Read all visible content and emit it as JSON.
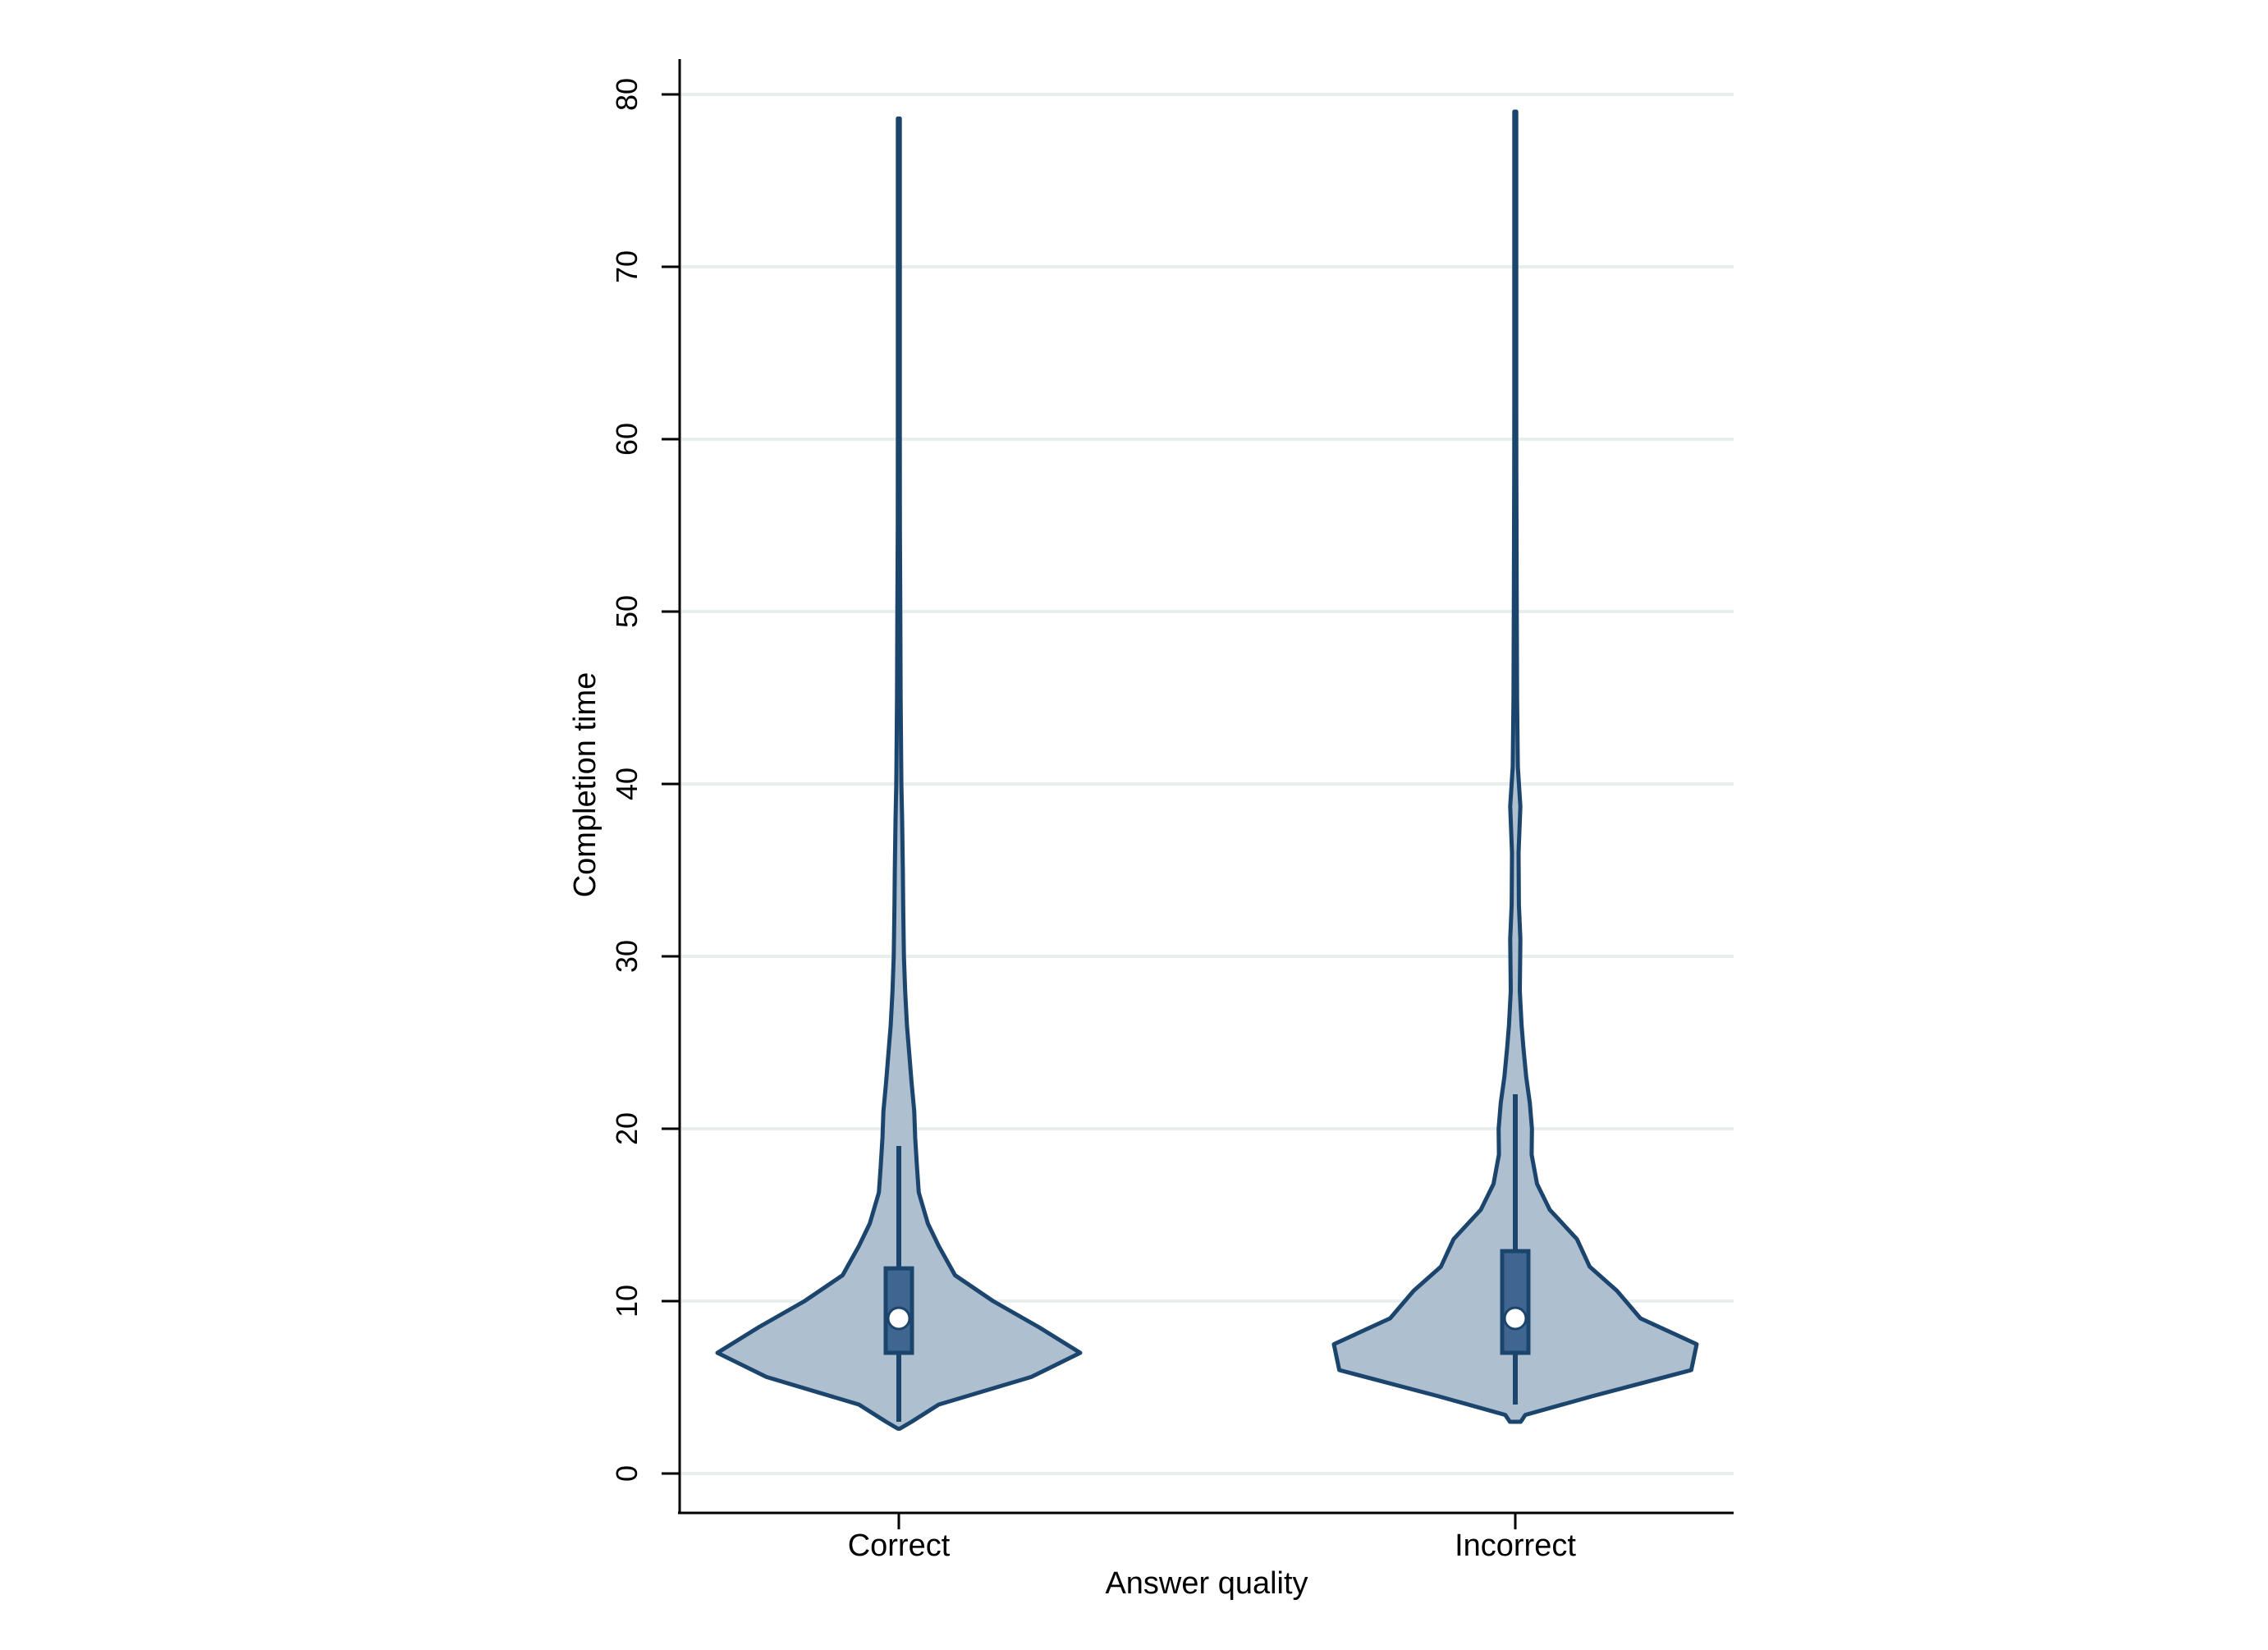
{
  "chart_data": {
    "type": "violin",
    "title": "",
    "xlabel": "Answer quality",
    "ylabel": "Completion time",
    "ylim": [
      0,
      80
    ],
    "yticks": [
      0,
      10,
      20,
      30,
      40,
      50,
      60,
      70,
      80
    ],
    "grid": "horizontal",
    "legend": "none",
    "categories": [
      "Correct",
      "Incorrect"
    ],
    "series": [
      {
        "category": "Correct",
        "min": 2.6,
        "max": 78.6,
        "box": {
          "whisker_low": 3.0,
          "q1": 7.0,
          "median": 9.0,
          "q3": 11.9,
          "whisker_high": 19.0
        },
        "density": [
          [
            2.6,
            0.0
          ],
          [
            3.0,
            0.07
          ],
          [
            4.0,
            0.22
          ],
          [
            5.6,
            0.73
          ],
          [
            7.0,
            1.0
          ],
          [
            8.5,
            0.77
          ],
          [
            10.0,
            0.52
          ],
          [
            11.5,
            0.31
          ],
          [
            13.2,
            0.22
          ],
          [
            14.5,
            0.16
          ],
          [
            16.3,
            0.11
          ],
          [
            17.8,
            0.1
          ],
          [
            19.5,
            0.09
          ],
          [
            21.0,
            0.085
          ],
          [
            22.7,
            0.07
          ],
          [
            24.0,
            0.06
          ],
          [
            26.0,
            0.045
          ],
          [
            28.0,
            0.035
          ],
          [
            30.0,
            0.028
          ],
          [
            33.0,
            0.024
          ],
          [
            35.0,
            0.022
          ],
          [
            38.0,
            0.018
          ],
          [
            40.0,
            0.014
          ],
          [
            45.0,
            0.01
          ],
          [
            50.0,
            0.008
          ],
          [
            55.0,
            0.006
          ],
          [
            60.0,
            0.004
          ],
          [
            65.0,
            0.003
          ],
          [
            70.0,
            0.003
          ],
          [
            75.0,
            0.002
          ],
          [
            78.6,
            0.0
          ]
        ]
      },
      {
        "category": "Incorrect",
        "min": 3.0,
        "max": 79.0,
        "box": {
          "whisker_low": 4.0,
          "q1": 7.0,
          "median": 9.0,
          "q3": 12.9,
          "whisker_high": 22.0
        },
        "density": [
          [
            3.0,
            0.03
          ],
          [
            3.4,
            0.055
          ],
          [
            4.5,
            0.43
          ],
          [
            6.0,
            0.97
          ],
          [
            7.5,
            1.0
          ],
          [
            9.0,
            0.69
          ],
          [
            10.6,
            0.56
          ],
          [
            12.0,
            0.41
          ],
          [
            13.6,
            0.34
          ],
          [
            15.3,
            0.19
          ],
          [
            16.8,
            0.12
          ],
          [
            18.5,
            0.09
          ],
          [
            20.0,
            0.092
          ],
          [
            21.5,
            0.08
          ],
          [
            23.0,
            0.06
          ],
          [
            24.7,
            0.045
          ],
          [
            26.0,
            0.035
          ],
          [
            28.0,
            0.025
          ],
          [
            31.0,
            0.028
          ],
          [
            33.0,
            0.02
          ],
          [
            36.0,
            0.018
          ],
          [
            38.7,
            0.028
          ],
          [
            41.0,
            0.014
          ],
          [
            45.0,
            0.01
          ],
          [
            50.0,
            0.008
          ],
          [
            55.0,
            0.007
          ],
          [
            58.0,
            0.006
          ],
          [
            62.0,
            0.004
          ],
          [
            66.0,
            0.003
          ],
          [
            70.0,
            0.003
          ],
          [
            75.0,
            0.002
          ],
          [
            79.0,
            0.0
          ]
        ]
      }
    ]
  },
  "colors": {
    "violin_fill": "#aebfd0",
    "violin_stroke": "#1c456e",
    "box_fill": "#3f6690",
    "median_marker": "#ffffff",
    "grid": "#e6eeee",
    "axis": "#000000"
  }
}
